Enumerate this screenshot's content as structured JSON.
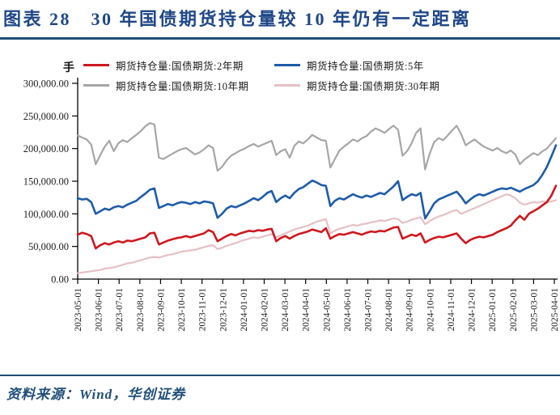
{
  "header": {
    "title": "图表 28　30 年国债期货持仓量较 10 年仍有一定距离"
  },
  "footer": {
    "source": "资料来源：Wind，华创证券"
  },
  "chart_data": {
    "type": "line",
    "title": "30 年国债期货持仓量较 10 年仍有一定距离",
    "unit_label": "手",
    "xlabel": "",
    "ylabel": "",
    "ylim": [
      0,
      300000
    ],
    "grid": false,
    "legend_position": "top",
    "y_tick_values": [
      0,
      50000,
      100000,
      150000,
      200000,
      250000,
      300000
    ],
    "y_tick_labels": [
      "0.00",
      "50,000.00",
      "100,000.00",
      "150,000.00",
      "200,000.00",
      "250,000.00",
      "300,000.00"
    ],
    "x_tick_labels": [
      "2023-05-01",
      "2023-06-01",
      "2023-07-01",
      "2023-08-01",
      "2023-09-01",
      "2023-10-01",
      "2023-11-01",
      "2023-12-01",
      "2024-01-01",
      "2024-02-01",
      "2024-03-01",
      "2024-04-01",
      "2024-05-01",
      "2024-06-01",
      "2024-07-01",
      "2024-08-01",
      "2024-09-01",
      "2024-10-01",
      "2024-11-01",
      "2024-12-01",
      "2025-01-01",
      "2025-02-01",
      "2025-03-01",
      "2025-04-01"
    ],
    "series": [
      {
        "name": "期货持仓量:国债期货:2年期",
        "color": "#ce181e",
        "width": 2.6,
        "values": [
          68000,
          71000,
          69000,
          66000,
          47000,
          52000,
          55000,
          53000,
          56000,
          58000,
          56000,
          59000,
          58000,
          60000,
          62000,
          64000,
          70000,
          71000,
          53000,
          56000,
          59000,
          61000,
          63000,
          64000,
          66000,
          64000,
          66000,
          68000,
          70000,
          75000,
          72000,
          58000,
          62000,
          66000,
          69000,
          67000,
          70000,
          72000,
          74000,
          73000,
          75000,
          74000,
          76000,
          77000,
          58000,
          63000,
          66000,
          62000,
          66000,
          69000,
          71000,
          73000,
          76000,
          74000,
          72000,
          78000,
          62000,
          66000,
          69000,
          68000,
          70000,
          72000,
          70000,
          68000,
          71000,
          73000,
          72000,
          74000,
          73000,
          76000,
          79000,
          80000,
          62000,
          65000,
          68000,
          66000,
          70000,
          56000,
          60000,
          63000,
          65000,
          64000,
          66000,
          68000,
          70000,
          62000,
          55000,
          60000,
          63000,
          65000,
          64000,
          66000,
          68000,
          72000,
          75000,
          78000,
          82000,
          90000,
          97000,
          91000,
          100000,
          104000,
          108000,
          113000,
          118000,
          128000,
          143000
        ]
      },
      {
        "name": "期货持仓量:国债期货:5年",
        "color": "#1e5ca8",
        "width": 2.6,
        "values": [
          124000,
          122000,
          123000,
          118000,
          100000,
          104000,
          108000,
          106000,
          110000,
          112000,
          110000,
          114000,
          117000,
          120000,
          126000,
          131000,
          137000,
          139000,
          109000,
          112000,
          115000,
          113000,
          116000,
          118000,
          117000,
          115000,
          118000,
          116000,
          119000,
          118000,
          116000,
          94000,
          100000,
          108000,
          112000,
          110000,
          113000,
          116000,
          120000,
          124000,
          121000,
          126000,
          132000,
          135000,
          118000,
          124000,
          128000,
          124000,
          132000,
          138000,
          141000,
          146000,
          151000,
          148000,
          144000,
          143000,
          112000,
          120000,
          124000,
          122000,
          126000,
          130000,
          127000,
          125000,
          128000,
          126000,
          129000,
          132000,
          130000,
          136000,
          142000,
          150000,
          121000,
          126000,
          130000,
          128000,
          132000,
          93000,
          104000,
          116000,
          122000,
          125000,
          128000,
          131000,
          134000,
          126000,
          116000,
          122000,
          127000,
          130000,
          128000,
          131000,
          134000,
          137000,
          139000,
          138000,
          140000,
          137000,
          134000,
          138000,
          141000,
          144000,
          150000,
          160000,
          172000,
          188000,
          205000
        ]
      },
      {
        "name": "期货持仓量:国债期货:10年期",
        "color": "#a6a6a6",
        "width": 2.2,
        "values": [
          220000,
          217000,
          214000,
          206000,
          176000,
          190000,
          203000,
          212000,
          196000,
          208000,
          213000,
          210000,
          216000,
          221000,
          227000,
          234000,
          239000,
          237000,
          186000,
          184000,
          188000,
          192000,
          196000,
          199000,
          201000,
          196000,
          191000,
          194000,
          199000,
          205000,
          201000,
          166000,
          172000,
          182000,
          189000,
          193000,
          197000,
          200000,
          204000,
          207000,
          203000,
          206000,
          209000,
          212000,
          190000,
          196000,
          199000,
          186000,
          204000,
          211000,
          208000,
          214000,
          221000,
          217000,
          213000,
          212000,
          171000,
          184000,
          197000,
          203000,
          208000,
          214000,
          211000,
          216000,
          219000,
          226000,
          231000,
          228000,
          224000,
          230000,
          235000,
          229000,
          189000,
          196000,
          208000,
          224000,
          231000,
          168000,
          192000,
          210000,
          216000,
          213000,
          220000,
          228000,
          235000,
          222000,
          205000,
          210000,
          214000,
          208000,
          203000,
          200000,
          197000,
          201000,
          196000,
          193000,
          197000,
          191000,
          176000,
          183000,
          188000,
          193000,
          190000,
          196000,
          200000,
          208000,
          216000
        ]
      },
      {
        "name": "期货持仓量:国债期货:30年期",
        "color": "#e5c0c4",
        "width": 2.2,
        "values": [
          9000,
          10000,
          11000,
          12000,
          13000,
          14000,
          16000,
          17000,
          18000,
          20000,
          22000,
          24000,
          25000,
          27000,
          29000,
          31000,
          33000,
          34000,
          33000,
          35000,
          37000,
          38000,
          40000,
          42000,
          43000,
          44000,
          45000,
          47000,
          49000,
          51000,
          52000,
          46000,
          48000,
          51000,
          53000,
          55000,
          58000,
          60000,
          62000,
          64000,
          63000,
          65000,
          67000,
          69000,
          64000,
          67000,
          70000,
          73000,
          76000,
          78000,
          80000,
          82000,
          85000,
          88000,
          90000,
          92000,
          70000,
          74000,
          77000,
          79000,
          81000,
          83000,
          82000,
          84000,
          85000,
          87000,
          88000,
          90000,
          89000,
          91000,
          93000,
          92000,
          86000,
          88000,
          91000,
          93000,
          95000,
          84000,
          89000,
          93000,
          96000,
          98000,
          101000,
          104000,
          106000,
          100000,
          103000,
          106000,
          109000,
          112000,
          115000,
          118000,
          121000,
          124000,
          127000,
          130000,
          128000,
          124000,
          117000,
          114000,
          116000,
          118000,
          117000,
          119000,
          118000,
          119000,
          121000
        ]
      }
    ]
  }
}
